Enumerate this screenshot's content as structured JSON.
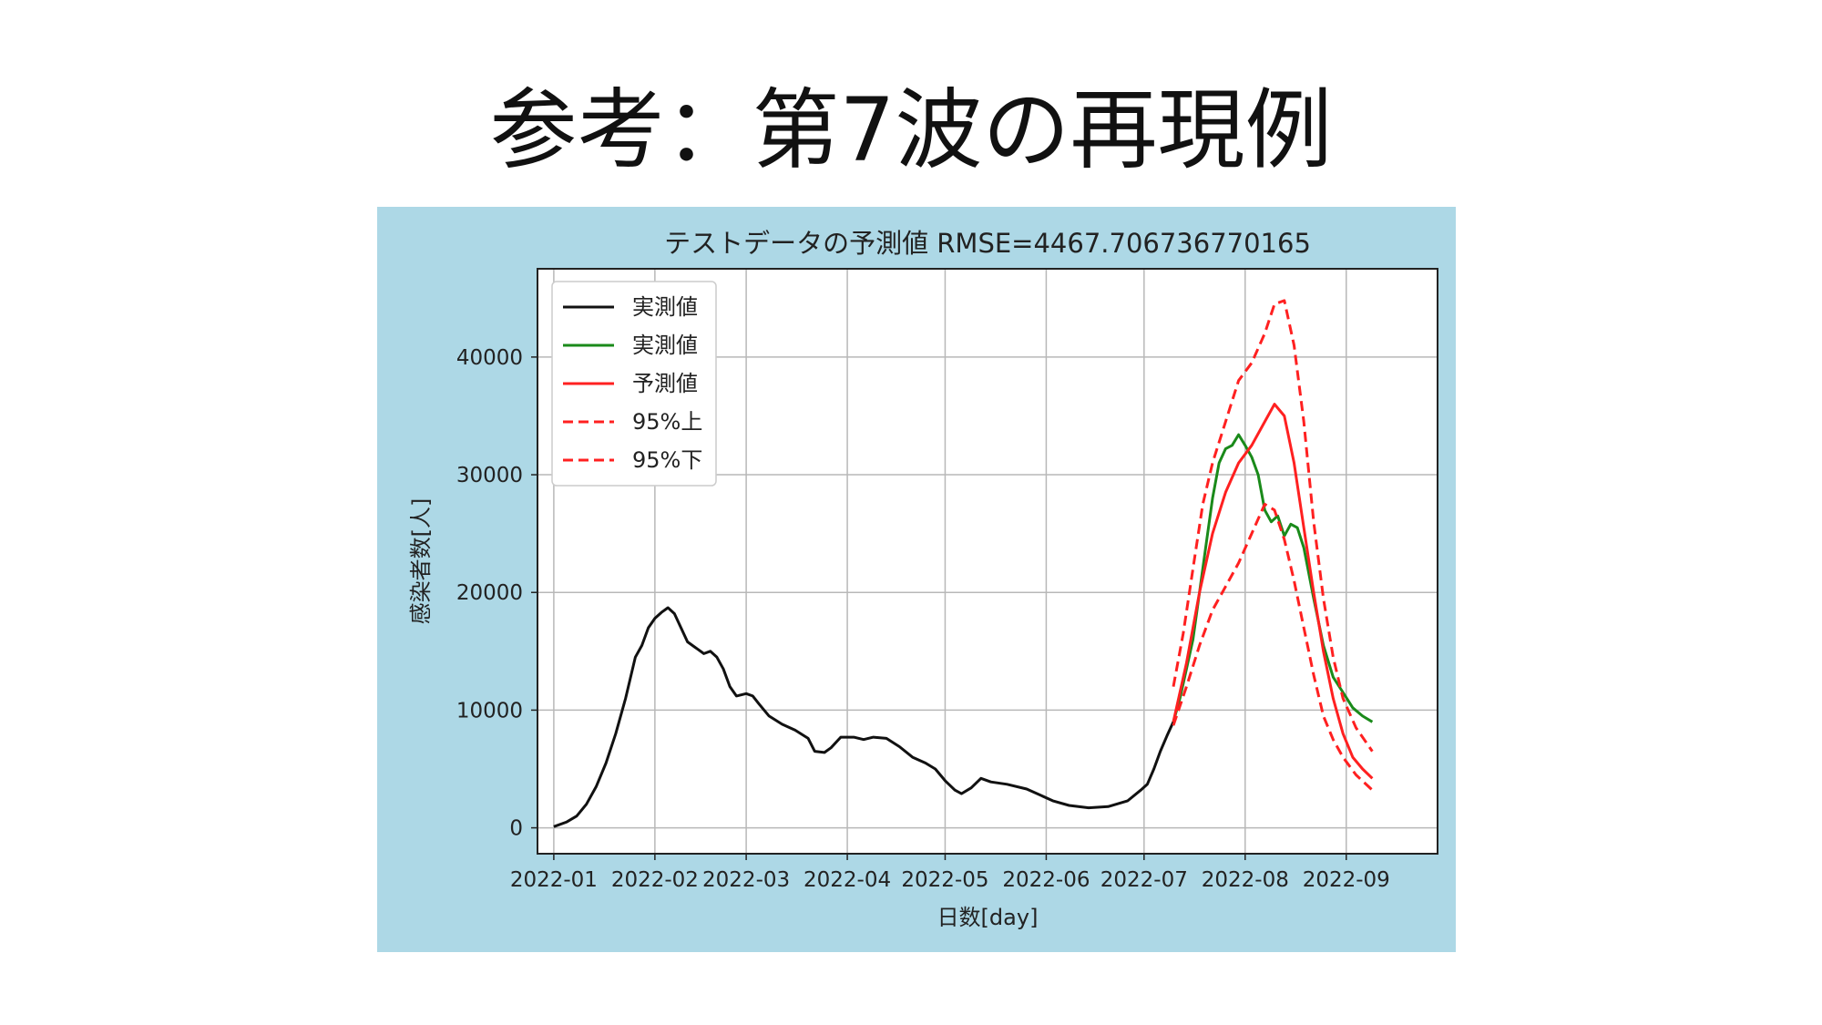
{
  "slide": {
    "title": "参考：第7波の再現例"
  },
  "colors": {
    "figure_bg": "#add8e6",
    "actual": "#111111",
    "actual_test": "#1a8a1a",
    "pred": "#ff2020",
    "ci": "#ff2020"
  },
  "chart_data": {
    "type": "line",
    "title": "テストデータの予測値 RMSE=4467.706736770165",
    "xlabel": "日数[day]",
    "ylabel": "感染者数[人]",
    "x_ticks": [
      "2022-01",
      "2022-02",
      "2022-03",
      "2022-04",
      "2022-05",
      "2022-06",
      "2022-07",
      "2022-08",
      "2022-09"
    ],
    "y_ticks": [
      "0",
      "10000",
      "20000",
      "30000",
      "40000"
    ],
    "xlim": [
      "2021-12-27",
      "2022-09-29"
    ],
    "ylim": [
      -2200,
      47500
    ],
    "grid": true,
    "legend_position": "top-left",
    "series": [
      {
        "name": "実測値",
        "color": "#111111",
        "dash": false,
        "points": [
          [
            "2022-01-01",
            100
          ],
          [
            "2022-01-05",
            500
          ],
          [
            "2022-01-08",
            1000
          ],
          [
            "2022-01-11",
            2000
          ],
          [
            "2022-01-14",
            3500
          ],
          [
            "2022-01-17",
            5500
          ],
          [
            "2022-01-20",
            8000
          ],
          [
            "2022-01-23",
            11000
          ],
          [
            "2022-01-26",
            14500
          ],
          [
            "2022-01-28",
            15500
          ],
          [
            "2022-01-30",
            17000
          ],
          [
            "2022-02-01",
            17800
          ],
          [
            "2022-02-03",
            18300
          ],
          [
            "2022-02-05",
            18700
          ],
          [
            "2022-02-07",
            18200
          ],
          [
            "2022-02-09",
            17000
          ],
          [
            "2022-02-11",
            15800
          ],
          [
            "2022-02-14",
            15200
          ],
          [
            "2022-02-16",
            14800
          ],
          [
            "2022-02-18",
            15000
          ],
          [
            "2022-02-20",
            14500
          ],
          [
            "2022-02-22",
            13500
          ],
          [
            "2022-02-24",
            12000
          ],
          [
            "2022-02-26",
            11200
          ],
          [
            "2022-03-01",
            11400
          ],
          [
            "2022-03-03",
            11200
          ],
          [
            "2022-03-05",
            10500
          ],
          [
            "2022-03-08",
            9500
          ],
          [
            "2022-03-12",
            8800
          ],
          [
            "2022-03-16",
            8300
          ],
          [
            "2022-03-20",
            7600
          ],
          [
            "2022-03-22",
            6500
          ],
          [
            "2022-03-25",
            6400
          ],
          [
            "2022-03-27",
            6800
          ],
          [
            "2022-03-30",
            7700
          ],
          [
            "2022-04-03",
            7700
          ],
          [
            "2022-04-06",
            7500
          ],
          [
            "2022-04-09",
            7700
          ],
          [
            "2022-04-13",
            7600
          ],
          [
            "2022-04-17",
            6900
          ],
          [
            "2022-04-21",
            6000
          ],
          [
            "2022-04-25",
            5500
          ],
          [
            "2022-04-28",
            5000
          ],
          [
            "2022-05-01",
            4000
          ],
          [
            "2022-05-04",
            3200
          ],
          [
            "2022-05-06",
            2900
          ],
          [
            "2022-05-09",
            3400
          ],
          [
            "2022-05-12",
            4200
          ],
          [
            "2022-05-15",
            3900
          ],
          [
            "2022-05-20",
            3700
          ],
          [
            "2022-05-26",
            3300
          ],
          [
            "2022-05-30",
            2800
          ],
          [
            "2022-06-03",
            2300
          ],
          [
            "2022-06-08",
            1900
          ],
          [
            "2022-06-14",
            1700
          ],
          [
            "2022-06-20",
            1800
          ],
          [
            "2022-06-26",
            2300
          ],
          [
            "2022-06-30",
            3200
          ],
          [
            "2022-07-02",
            3700
          ],
          [
            "2022-07-04",
            5000
          ],
          [
            "2022-07-06",
            6500
          ],
          [
            "2022-07-08",
            7800
          ],
          [
            "2022-07-10",
            9000
          ]
        ]
      },
      {
        "name": "実測値",
        "color": "#1a8a1a",
        "dash": false,
        "points": [
          [
            "2022-07-10",
            9000
          ],
          [
            "2022-07-12",
            11000
          ],
          [
            "2022-07-14",
            13500
          ],
          [
            "2022-07-16",
            16000
          ],
          [
            "2022-07-18",
            20000
          ],
          [
            "2022-07-20",
            24000
          ],
          [
            "2022-07-22",
            28000
          ],
          [
            "2022-07-24",
            31000
          ],
          [
            "2022-07-26",
            32200
          ],
          [
            "2022-07-28",
            32500
          ],
          [
            "2022-07-30",
            33400
          ],
          [
            "2022-08-01",
            32500
          ],
          [
            "2022-08-03",
            31500
          ],
          [
            "2022-08-05",
            30000
          ],
          [
            "2022-08-07",
            27000
          ],
          [
            "2022-08-09",
            26000
          ],
          [
            "2022-08-11",
            26500
          ],
          [
            "2022-08-13",
            24800
          ],
          [
            "2022-08-15",
            25800
          ],
          [
            "2022-08-17",
            25500
          ],
          [
            "2022-08-19",
            23800
          ],
          [
            "2022-08-22",
            19500
          ],
          [
            "2022-08-25",
            15500
          ],
          [
            "2022-08-28",
            12800
          ],
          [
            "2022-08-31",
            11500
          ],
          [
            "2022-09-03",
            10200
          ],
          [
            "2022-09-06",
            9500
          ],
          [
            "2022-09-09",
            9000
          ]
        ]
      },
      {
        "name": "予測値",
        "color": "#ff2020",
        "dash": false,
        "points": [
          [
            "2022-07-10",
            9000
          ],
          [
            "2022-07-14",
            14000
          ],
          [
            "2022-07-18",
            20000
          ],
          [
            "2022-07-22",
            25000
          ],
          [
            "2022-07-26",
            28500
          ],
          [
            "2022-07-30",
            31000
          ],
          [
            "2022-08-03",
            32500
          ],
          [
            "2022-08-07",
            34500
          ],
          [
            "2022-08-10",
            36000
          ],
          [
            "2022-08-13",
            35000
          ],
          [
            "2022-08-16",
            31000
          ],
          [
            "2022-08-19",
            25500
          ],
          [
            "2022-08-22",
            20000
          ],
          [
            "2022-08-25",
            15000
          ],
          [
            "2022-08-28",
            11000
          ],
          [
            "2022-08-31",
            8000
          ],
          [
            "2022-09-03",
            6000
          ],
          [
            "2022-09-06",
            5000
          ],
          [
            "2022-09-09",
            4200
          ]
        ]
      },
      {
        "name": "95%上",
        "color": "#ff2020",
        "dash": true,
        "points": [
          [
            "2022-07-10",
            12000
          ],
          [
            "2022-07-13",
            16500
          ],
          [
            "2022-07-16",
            22000
          ],
          [
            "2022-07-19",
            27500
          ],
          [
            "2022-07-22",
            31000
          ],
          [
            "2022-07-26",
            34500
          ],
          [
            "2022-07-30",
            38000
          ],
          [
            "2022-08-03",
            39500
          ],
          [
            "2022-08-07",
            42000
          ],
          [
            "2022-08-10",
            44500
          ],
          [
            "2022-08-13",
            44800
          ],
          [
            "2022-08-16",
            41000
          ],
          [
            "2022-08-19",
            34500
          ],
          [
            "2022-08-22",
            26000
          ],
          [
            "2022-08-25",
            19500
          ],
          [
            "2022-08-28",
            14500
          ],
          [
            "2022-08-31",
            11000
          ],
          [
            "2022-09-04",
            8500
          ],
          [
            "2022-09-09",
            6500
          ]
        ]
      },
      {
        "name": "95%下",
        "color": "#ff2020",
        "dash": true,
        "points": [
          [
            "2022-07-10",
            8700
          ],
          [
            "2022-07-14",
            12000
          ],
          [
            "2022-07-18",
            15500
          ],
          [
            "2022-07-22",
            18500
          ],
          [
            "2022-07-26",
            20500
          ],
          [
            "2022-07-30",
            22500
          ],
          [
            "2022-08-03",
            25000
          ],
          [
            "2022-08-07",
            27500
          ],
          [
            "2022-08-10",
            27000
          ],
          [
            "2022-08-13",
            24500
          ],
          [
            "2022-08-16",
            21000
          ],
          [
            "2022-08-19",
            17000
          ],
          [
            "2022-08-22",
            13000
          ],
          [
            "2022-08-25",
            9500
          ],
          [
            "2022-08-28",
            7500
          ],
          [
            "2022-08-31",
            6000
          ],
          [
            "2022-09-04",
            4500
          ],
          [
            "2022-09-09",
            3200
          ]
        ]
      }
    ]
  }
}
